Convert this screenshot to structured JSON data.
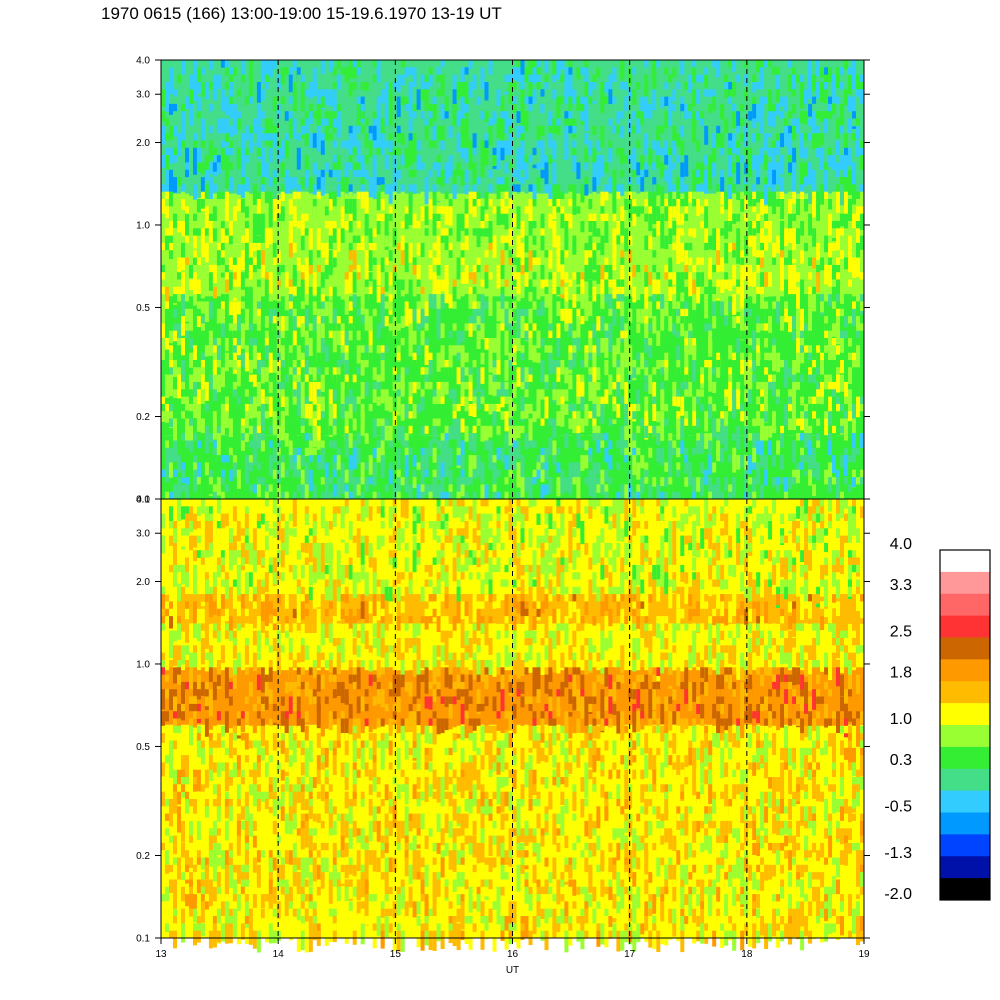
{
  "title": "1970 0615 (166) 13:00-19:00 15-19.6.1970  13-19 UT",
  "chart_data": [
    {
      "type": "heatmap",
      "panel": "upper",
      "x_range": [
        13,
        19
      ],
      "y_scale": "log",
      "y_range": [
        0.1,
        4.0
      ],
      "y_ticks": [
        "0.1",
        "0.2",
        "0.5",
        "1.0",
        "2.0",
        "3.0",
        "4.0"
      ],
      "y_tick_values": [
        0.1,
        0.2,
        0.5,
        1.0,
        2.0,
        3.0,
        4.0
      ],
      "x_ticks": [
        13,
        14,
        15,
        16,
        17,
        18,
        19
      ],
      "hour_markers": [
        14,
        15,
        16,
        17,
        18
      ],
      "dominant_levels": [
        {
          "y_from": 0.1,
          "y_to": 0.17,
          "level": 0.3
        },
        {
          "y_from": 0.17,
          "y_to": 0.55,
          "level": 0.6
        },
        {
          "y_from": 0.55,
          "y_to": 0.85,
          "level": 0.9
        },
        {
          "y_from": 0.85,
          "y_to": 1.3,
          "level": 0.8
        },
        {
          "y_from": 1.3,
          "y_to": 4.0,
          "level": 0.0
        }
      ]
    },
    {
      "type": "heatmap",
      "panel": "lower",
      "x_range": [
        13,
        19
      ],
      "xlabel": "UT",
      "y_scale": "log",
      "y_range": [
        0.1,
        4.0
      ],
      "y_ticks": [
        "0.1",
        "0.2",
        "0.5",
        "1.0",
        "2.0",
        "3.0",
        "4.0"
      ],
      "y_tick_values": [
        0.1,
        0.2,
        0.5,
        1.0,
        2.0,
        3.0,
        4.0
      ],
      "x_ticks": [
        13,
        14,
        15,
        16,
        17,
        18,
        19
      ],
      "hour_markers": [
        14,
        15,
        16,
        17,
        18
      ],
      "dominant_levels": [
        {
          "y_from": 0.1,
          "y_to": 0.6,
          "level": 1.3
        },
        {
          "y_from": 0.6,
          "y_to": 0.95,
          "level": 2.0
        },
        {
          "y_from": 0.95,
          "y_to": 1.4,
          "level": 1.2
        },
        {
          "y_from": 1.4,
          "y_to": 1.8,
          "level": 1.6
        },
        {
          "y_from": 1.8,
          "y_to": 4.0,
          "level": 1.1
        }
      ]
    }
  ],
  "colorbar": {
    "labels": [
      "4.0",
      "3.3",
      "2.5",
      "1.8",
      "1.0",
      "0.3",
      "-0.5",
      "-1.3",
      "-2.0"
    ],
    "label_values": [
      4.0,
      3.3,
      2.5,
      1.8,
      1.0,
      0.3,
      -0.5,
      -1.3,
      -2.0
    ],
    "colors": [
      "#ffffff",
      "#ff9999",
      "#ff6666",
      "#ff3333",
      "#cc6600",
      "#ff9900",
      "#ffbb00",
      "#ffff00",
      "#99ff33",
      "#33ee33",
      "#44dd88",
      "#33ccff",
      "#0099ff",
      "#0044ff",
      "#0011aa",
      "#000000"
    ]
  }
}
